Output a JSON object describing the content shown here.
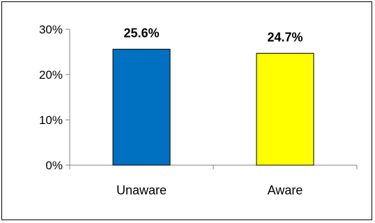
{
  "chart_data": {
    "type": "bar",
    "categories": [
      "Unaware",
      "Aware"
    ],
    "values": [
      25.6,
      24.7
    ],
    "data_labels": [
      "25.6%",
      "24.7%"
    ],
    "colors": [
      "#0070C0",
      "#FFFF00"
    ],
    "yticks": [
      {
        "value": 0,
        "label": "0%"
      },
      {
        "value": 10,
        "label": "10%"
      },
      {
        "value": 20,
        "label": "20%"
      },
      {
        "value": 30,
        "label": "30%"
      }
    ],
    "ylim": [
      0,
      30
    ],
    "grid": false,
    "legend": "none"
  }
}
